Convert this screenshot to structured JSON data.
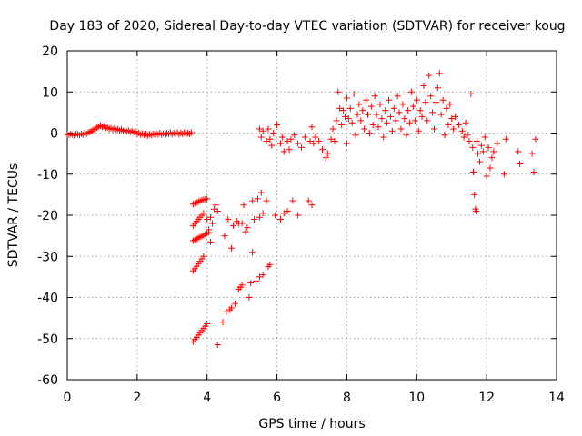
{
  "chart_data": {
    "type": "scatter",
    "title": "Day 183 of 2020, Sidereal Day-to-day VTEC variation (SDTVAR) for receiver koug",
    "xlabel": "GPS time / hours",
    "ylabel": "SDTVAR / TECUs",
    "xlim": [
      0,
      14
    ],
    "ylim": [
      -60,
      20
    ],
    "x_ticks": [
      0,
      2,
      4,
      6,
      8,
      10,
      12,
      14
    ],
    "y_ticks": [
      -60,
      -50,
      -40,
      -30,
      -20,
      -10,
      0,
      10,
      20
    ],
    "grid": true,
    "marker": "+",
    "color": "#ff0000",
    "series": [
      {
        "name": "SDTVAR",
        "points": [
          [
            0.0,
            -0.3
          ],
          [
            0.05,
            -0.5
          ],
          [
            0.1,
            -0.2
          ],
          [
            0.15,
            -0.4
          ],
          [
            0.2,
            -0.6
          ],
          [
            0.25,
            -0.1
          ],
          [
            0.3,
            -0.3
          ],
          [
            0.35,
            -0.5
          ],
          [
            0.4,
            -0.2
          ],
          [
            0.45,
            -0.4
          ],
          [
            0.5,
            0.0
          ],
          [
            0.55,
            -0.2
          ],
          [
            0.6,
            0.1
          ],
          [
            0.65,
            0.3
          ],
          [
            0.7,
            0.5
          ],
          [
            0.75,
            0.8
          ],
          [
            0.8,
            1.0
          ],
          [
            0.85,
            1.3
          ],
          [
            0.9,
            1.6
          ],
          [
            0.95,
            1.8
          ],
          [
            1.0,
            1.5
          ],
          [
            1.05,
            1.7
          ],
          [
            1.1,
            1.2
          ],
          [
            1.15,
            1.4
          ],
          [
            1.2,
            1.0
          ],
          [
            1.25,
            1.2
          ],
          [
            1.3,
            0.9
          ],
          [
            1.35,
            1.1
          ],
          [
            1.4,
            0.8
          ],
          [
            1.45,
            1.0
          ],
          [
            1.5,
            0.6
          ],
          [
            1.55,
            0.9
          ],
          [
            1.6,
            0.5
          ],
          [
            1.65,
            0.7
          ],
          [
            1.7,
            0.4
          ],
          [
            1.75,
            0.6
          ],
          [
            1.8,
            0.3
          ],
          [
            1.85,
            0.5
          ],
          [
            1.9,
            0.2
          ],
          [
            1.95,
            0.4
          ],
          [
            2.0,
            -0.2
          ],
          [
            2.05,
            0.0
          ],
          [
            2.1,
            -0.4
          ],
          [
            2.15,
            -0.1
          ],
          [
            2.2,
            -0.5
          ],
          [
            2.25,
            -0.2
          ],
          [
            2.3,
            -0.6
          ],
          [
            2.35,
            -0.3
          ],
          [
            2.4,
            -0.5
          ],
          [
            2.45,
            -0.2
          ],
          [
            2.5,
            -0.4
          ],
          [
            2.55,
            -0.1
          ],
          [
            2.6,
            -0.3
          ],
          [
            2.65,
            0.0
          ],
          [
            2.7,
            -0.4
          ],
          [
            2.75,
            -0.1
          ],
          [
            2.8,
            -0.3
          ],
          [
            2.85,
            0.0
          ],
          [
            2.9,
            -0.2
          ],
          [
            2.95,
            0.1
          ],
          [
            3.0,
            -0.3
          ],
          [
            3.05,
            0.0
          ],
          [
            3.1,
            -0.2
          ],
          [
            3.15,
            0.1
          ],
          [
            3.2,
            -0.3
          ],
          [
            3.25,
            0.0
          ],
          [
            3.3,
            -0.2
          ],
          [
            3.35,
            0.1
          ],
          [
            3.4,
            -0.3
          ],
          [
            3.45,
            0.0
          ],
          [
            3.5,
            -0.2
          ],
          [
            3.55,
            0.1
          ],
          [
            3.6,
            -50.8
          ],
          [
            3.65,
            -50.2
          ],
          [
            3.7,
            -49.7
          ],
          [
            3.75,
            -49.1
          ],
          [
            3.8,
            -48.6
          ],
          [
            3.85,
            -48.0
          ],
          [
            3.9,
            -47.5
          ],
          [
            3.95,
            -47.0
          ],
          [
            4.0,
            -46.4
          ],
          [
            3.6,
            -33.5
          ],
          [
            3.65,
            -33.0
          ],
          [
            3.7,
            -32.4
          ],
          [
            3.75,
            -31.8
          ],
          [
            3.8,
            -31.2
          ],
          [
            3.85,
            -30.6
          ],
          [
            3.9,
            -30.0
          ],
          [
            3.6,
            -26.2
          ],
          [
            3.65,
            -26.0
          ],
          [
            3.7,
            -25.8
          ],
          [
            3.75,
            -25.5
          ],
          [
            3.8,
            -25.3
          ],
          [
            3.85,
            -25.1
          ],
          [
            3.9,
            -24.9
          ],
          [
            3.95,
            -24.6
          ],
          [
            4.0,
            -24.4
          ],
          [
            4.05,
            -24.2
          ],
          [
            3.6,
            -22.5
          ],
          [
            3.65,
            -22.0
          ],
          [
            3.7,
            -21.5
          ],
          [
            3.75,
            -21.0
          ],
          [
            3.8,
            -20.5
          ],
          [
            3.85,
            -20.0
          ],
          [
            3.9,
            -19.5
          ],
          [
            3.6,
            -17.3
          ],
          [
            3.65,
            -17.1
          ],
          [
            3.7,
            -16.9
          ],
          [
            3.75,
            -16.7
          ],
          [
            3.8,
            -16.5
          ],
          [
            3.85,
            -16.3
          ],
          [
            3.9,
            -16.2
          ],
          [
            3.95,
            -16.1
          ],
          [
            4.0,
            -16.0
          ],
          [
            4.0,
            -21.0
          ],
          [
            4.05,
            -23.5
          ],
          [
            4.1,
            -20.5
          ],
          [
            4.1,
            -26.5
          ],
          [
            4.15,
            -22.0
          ],
          [
            4.2,
            -18.5
          ],
          [
            4.25,
            -17.5
          ],
          [
            4.3,
            -19.0
          ],
          [
            4.3,
            -51.5
          ],
          [
            4.45,
            -46.0
          ],
          [
            4.5,
            -25.0
          ],
          [
            4.55,
            -43.5
          ],
          [
            4.6,
            -21.0
          ],
          [
            4.65,
            -43.0
          ],
          [
            4.7,
            -42.5
          ],
          [
            4.7,
            -28.0
          ],
          [
            4.75,
            -22.5
          ],
          [
            4.8,
            -41.5
          ],
          [
            4.85,
            -21.5
          ],
          [
            4.9,
            -22.0
          ],
          [
            4.9,
            -38.0
          ],
          [
            4.95,
            -37.5
          ],
          [
            5.0,
            -22.0
          ],
          [
            5.0,
            -37.0
          ],
          [
            5.05,
            -17.5
          ],
          [
            5.1,
            -24.0
          ],
          [
            5.15,
            -23.0
          ],
          [
            5.2,
            -40.0
          ],
          [
            5.25,
            -36.5
          ],
          [
            5.3,
            -16.5
          ],
          [
            5.3,
            -29.0
          ],
          [
            5.35,
            -21.0
          ],
          [
            5.4,
            -36.0
          ],
          [
            5.45,
            -16.0
          ],
          [
            5.5,
            -35.0
          ],
          [
            5.5,
            -20.5
          ],
          [
            5.55,
            -14.5
          ],
          [
            5.6,
            -19.5
          ],
          [
            5.6,
            -34.5
          ],
          [
            5.7,
            -16.5
          ],
          [
            5.75,
            -32.5
          ],
          [
            5.8,
            -32.0
          ],
          [
            5.95,
            -20.0
          ],
          [
            6.1,
            -21.0
          ],
          [
            6.2,
            -19.5
          ],
          [
            6.3,
            -19.0
          ],
          [
            6.45,
            -16.5
          ],
          [
            6.6,
            -20.0
          ],
          [
            6.9,
            -16.5
          ],
          [
            7.0,
            -17.5
          ],
          [
            5.5,
            1.0
          ],
          [
            5.55,
            -1.0
          ],
          [
            5.6,
            0.5
          ],
          [
            5.7,
            -2.0
          ],
          [
            5.75,
            1.0
          ],
          [
            5.8,
            -1.5
          ],
          [
            5.85,
            -3.0
          ],
          [
            5.9,
            0.0
          ],
          [
            6.0,
            2.0
          ],
          [
            6.1,
            -2.5
          ],
          [
            6.15,
            -1.0
          ],
          [
            6.2,
            -4.5
          ],
          [
            6.3,
            -2.0
          ],
          [
            6.35,
            -4.0
          ],
          [
            6.4,
            -1.5
          ],
          [
            6.5,
            -0.5
          ],
          [
            6.6,
            -2.5
          ],
          [
            6.7,
            -3.5
          ],
          [
            6.8,
            -1.0
          ],
          [
            6.95,
            -2.0
          ],
          [
            7.0,
            1.5
          ],
          [
            7.05,
            -2.5
          ],
          [
            7.1,
            -1.0
          ],
          [
            7.2,
            -2.0
          ],
          [
            7.3,
            -4.0
          ],
          [
            7.4,
            -6.0
          ],
          [
            7.45,
            -5.0
          ],
          [
            7.55,
            -1.5
          ],
          [
            7.6,
            1.0
          ],
          [
            7.65,
            -2.0
          ],
          [
            7.7,
            3.0
          ],
          [
            7.75,
            10.0
          ],
          [
            7.8,
            6.0
          ],
          [
            7.85,
            2.0
          ],
          [
            7.9,
            5.5
          ],
          [
            7.95,
            4.0
          ],
          [
            8.0,
            -2.5
          ],
          [
            8.0,
            8.5
          ],
          [
            8.05,
            3.5
          ],
          [
            8.1,
            6.0
          ],
          [
            8.15,
            2.5
          ],
          [
            8.2,
            9.5
          ],
          [
            8.25,
            -0.5
          ],
          [
            8.3,
            4.5
          ],
          [
            8.35,
            7.0
          ],
          [
            8.4,
            3.0
          ],
          [
            8.45,
            5.5
          ],
          [
            8.5,
            1.0
          ],
          [
            8.55,
            8.0
          ],
          [
            8.6,
            4.5
          ],
          [
            8.65,
            0.0
          ],
          [
            8.7,
            6.5
          ],
          [
            8.75,
            2.0
          ],
          [
            8.8,
            9.0
          ],
          [
            8.85,
            4.5
          ],
          [
            8.9,
            1.5
          ],
          [
            8.95,
            7.0
          ],
          [
            9.0,
            3.5
          ],
          [
            9.05,
            -1.0
          ],
          [
            9.1,
            5.5
          ],
          [
            9.15,
            2.5
          ],
          [
            9.2,
            8.0
          ],
          [
            9.25,
            4.0
          ],
          [
            9.3,
            0.5
          ],
          [
            9.35,
            6.0
          ],
          [
            9.4,
            3.0
          ],
          [
            9.45,
            9.0
          ],
          [
            9.5,
            5.0
          ],
          [
            9.55,
            1.0
          ],
          [
            9.6,
            7.0
          ],
          [
            9.65,
            3.5
          ],
          [
            9.7,
            -0.5
          ],
          [
            9.75,
            5.5
          ],
          [
            9.8,
            2.5
          ],
          [
            9.85,
            10.0
          ],
          [
            9.9,
            6.5
          ],
          [
            9.95,
            3.0
          ],
          [
            10.0,
            8.0
          ],
          [
            10.05,
            0.5
          ],
          [
            10.1,
            5.5
          ],
          [
            10.15,
            4.0
          ],
          [
            10.2,
            11.5
          ],
          [
            10.25,
            7.5
          ],
          [
            10.3,
            3.0
          ],
          [
            10.35,
            14.0
          ],
          [
            10.4,
            9.0
          ],
          [
            10.45,
            5.0
          ],
          [
            10.5,
            1.0
          ],
          [
            10.55,
            7.5
          ],
          [
            10.6,
            11.0
          ],
          [
            10.65,
            14.5
          ],
          [
            10.7,
            4.5
          ],
          [
            10.75,
            8.0
          ],
          [
            10.8,
            -0.5
          ],
          [
            10.85,
            6.0
          ],
          [
            10.9,
            2.0
          ],
          [
            10.95,
            7.0
          ],
          [
            11.0,
            3.5
          ],
          [
            11.05,
            1.0
          ],
          [
            11.1,
            4.0
          ],
          [
            11.2,
            2.0
          ],
          [
            11.3,
            0.5
          ],
          [
            11.35,
            -1.0
          ],
          [
            11.4,
            2.5
          ],
          [
            11.45,
            -0.5
          ],
          [
            11.5,
            -2.0
          ],
          [
            11.55,
            9.5
          ],
          [
            11.6,
            -3.5
          ],
          [
            11.62,
            -9.5
          ],
          [
            11.65,
            -15.0
          ],
          [
            11.68,
            -18.5
          ],
          [
            11.7,
            -19.0
          ],
          [
            11.72,
            -2.0
          ],
          [
            11.75,
            -5.0
          ],
          [
            11.8,
            -7.0
          ],
          [
            11.85,
            -3.0
          ],
          [
            11.9,
            -4.5
          ],
          [
            11.95,
            -1.0
          ],
          [
            12.0,
            -10.5
          ],
          [
            12.05,
            -3.5
          ],
          [
            12.1,
            -8.5
          ],
          [
            12.15,
            -6.0
          ],
          [
            12.2,
            -4.5
          ],
          [
            12.3,
            -2.5
          ],
          [
            12.5,
            -10.0
          ],
          [
            12.55,
            -1.5
          ],
          [
            12.9,
            -4.5
          ],
          [
            12.95,
            -7.5
          ],
          [
            13.3,
            -5.0
          ],
          [
            13.35,
            -9.5
          ],
          [
            13.4,
            -1.5
          ]
        ]
      }
    ]
  }
}
